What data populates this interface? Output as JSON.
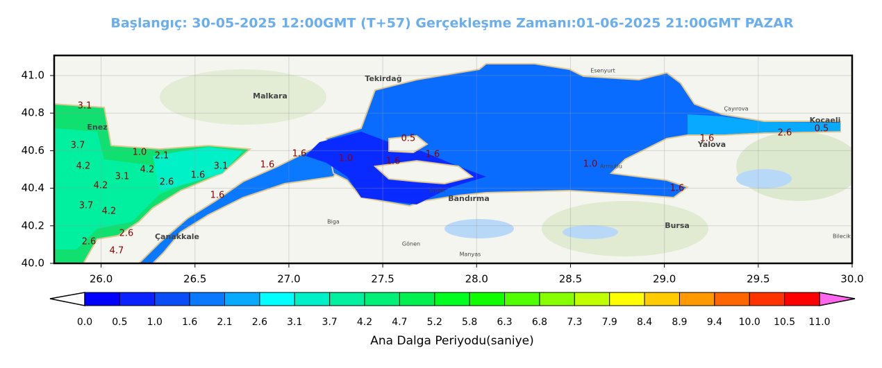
{
  "map": {
    "title": "Başlangıç: 30-05-2025 12:00GMT (T+57)  Gerçekleşme Zamanı:01-06-2025 21:00GMT PAZAR",
    "xlim": [
      25.75,
      30.0
    ],
    "ylim": [
      40.0,
      41.107
    ],
    "xticks": [
      {
        "value": 26,
        "label": "26.0"
      },
      {
        "value": 26.5,
        "label": "26.5"
      },
      {
        "value": 27,
        "label": "27.0"
      },
      {
        "value": 27.5,
        "label": "27.5"
      },
      {
        "value": 28,
        "label": "28.0"
      },
      {
        "value": 28.5,
        "label": "28.5"
      },
      {
        "value": 29,
        "label": "29.0"
      },
      {
        "value": 29.5,
        "label": "29.5"
      },
      {
        "value": 30,
        "label": "30.0"
      }
    ],
    "yticks": [
      {
        "value": 40,
        "label": "40.0"
      },
      {
        "value": 40.2,
        "label": "40.2"
      },
      {
        "value": 40.4,
        "label": "40.4"
      },
      {
        "value": 40.6,
        "label": "40.6"
      },
      {
        "value": 40.8,
        "label": "40.8"
      },
      {
        "value": 41,
        "label": "41.0"
      }
    ],
    "grid": true,
    "places": [
      "Tekirdağ",
      "Malkara",
      "Enez",
      "Çanakkale",
      "Bandırma",
      "Bursa",
      "Yalova",
      "Kocaeli",
      "Gönen",
      "Manyas",
      "Biga",
      "Armutlu",
      "Esenyurt",
      "Çayırova",
      "Erdek",
      "Bilecik"
    ],
    "contour_labels": [
      "3.1",
      "3.7",
      "4.2",
      "1.0",
      "2.1",
      "4.2",
      "3.1",
      "2.6",
      "1.6",
      "3.1",
      "1.6",
      "1.6",
      "1.0",
      "0.5",
      "1.6",
      "1.6",
      "1.0",
      "1.6",
      "2.6",
      "1.6",
      "0.5",
      "1.6",
      "4.2",
      "3.7",
      "4.2",
      "2.6",
      "4.7",
      "2.6"
    ]
  },
  "colorbar": {
    "title": "Ana Dalga Periyodu(saniye)",
    "levels": [
      {
        "value": 0,
        "label": "0.0"
      },
      0.5,
      {
        "value": 1,
        "label": "1.0"
      },
      1.6,
      2.1,
      2.6,
      3.1,
      3.7,
      4.2,
      4.7,
      5.2,
      5.8,
      6.3,
      6.8,
      7.3,
      7.9,
      8.4,
      8.9,
      9.4,
      {
        "value": 10,
        "label": "10.0"
      },
      10.5,
      {
        "value": 11,
        "label": "11.0"
      }
    ],
    "colors": [
      "#0000ff",
      "#0a22ff",
      "#0a4cf5",
      "#0a78ff",
      "#08aaff",
      "#00ffff",
      "#00f0c8",
      "#00f0a0",
      "#00f078",
      "#00f050",
      "#00ff20",
      "#10ff00",
      "#50ff00",
      "#88ff00",
      "#c0ff00",
      "#ffff00",
      "#ffcc00",
      "#ff9900",
      "#ff6600",
      "#ff3300",
      "#ff0000"
    ],
    "under_color": "#ffffff",
    "over_color": "#ff66ee"
  }
}
